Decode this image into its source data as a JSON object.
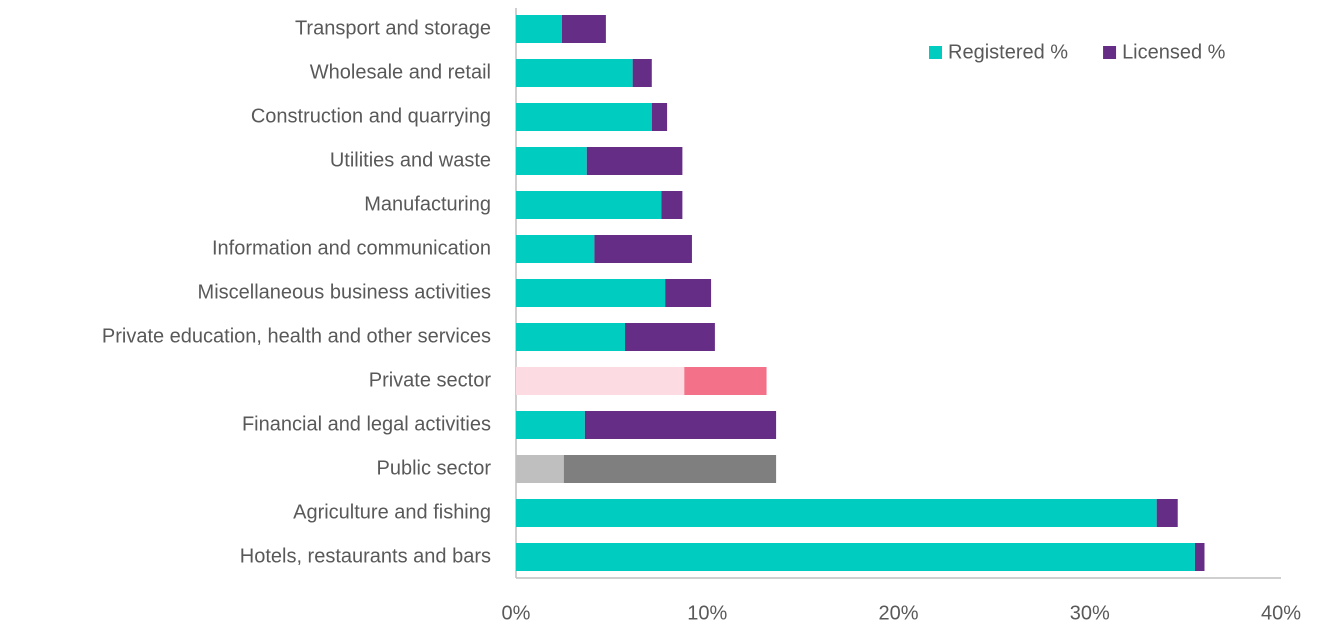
{
  "chart_data": {
    "type": "stacked_barh",
    "categories": [
      "Transport and storage",
      "Wholesale and retail",
      "Construction and quarrying",
      "Utilities and waste",
      "Manufacturing",
      "Information and communication",
      "Miscellaneous business activities",
      "Private education, health and other services",
      "Private sector",
      "Financial and legal activities",
      "Public sector",
      "Agriculture and fishing",
      "Hotels, restaurants and bars"
    ],
    "series": [
      {
        "name": "Registered %",
        "color": "#00cdbf",
        "colors": [
          "#00cdbf",
          "#00cdbf",
          "#00cdbf",
          "#00cdbf",
          "#00cdbf",
          "#00cdbf",
          "#00cdbf",
          "#00cdbf",
          "#fcdce2",
          "#00cdbf",
          "#bfbfbf",
          "#00cdbf",
          "#00cdbf"
        ],
        "values": [
          2.4,
          6.1,
          7.1,
          3.7,
          7.6,
          4.1,
          7.8,
          5.7,
          8.8,
          3.6,
          2.5,
          33.5,
          35.5
        ]
      },
      {
        "name": "Licensed %",
        "color": "#662d87",
        "colors": [
          "#662d87",
          "#662d87",
          "#662d87",
          "#662d87",
          "#662d87",
          "#662d87",
          "#662d87",
          "#662d87",
          "#f4718a",
          "#662d87",
          "#7f7f7f",
          "#662d87",
          "#662d87"
        ],
        "values": [
          2.3,
          1.0,
          0.8,
          5.0,
          1.1,
          5.1,
          2.4,
          4.7,
          4.3,
          10.0,
          11.1,
          1.1,
          0.5
        ]
      }
    ],
    "xlim": [
      0,
      40
    ],
    "xticks": [
      {
        "value": 0,
        "label": "0%"
      },
      {
        "value": 10,
        "label": "10%"
      },
      {
        "value": 20,
        "label": "20%"
      },
      {
        "value": 30,
        "label": "30%"
      },
      {
        "value": 40,
        "label": "40%"
      }
    ],
    "legend": "top-right"
  }
}
